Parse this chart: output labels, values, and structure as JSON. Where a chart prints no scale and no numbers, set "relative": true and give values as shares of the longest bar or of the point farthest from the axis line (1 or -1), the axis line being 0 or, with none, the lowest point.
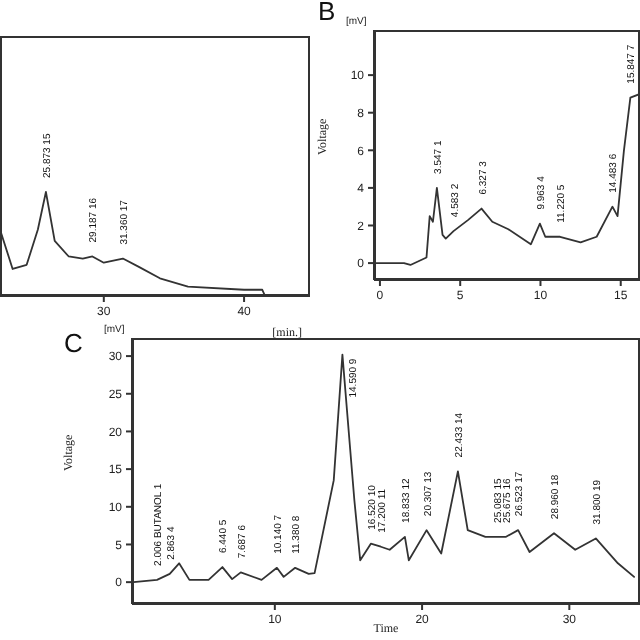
{
  "chart_data": [
    {
      "type": "line",
      "relative": true,
      "xlabel": "[min.]",
      "tick_labels": "x",
      "color": "#333333",
      "xlim": [
        22.6,
        44.7
      ],
      "xticks": [
        30,
        40
      ],
      "x": [
        22.6,
        23.5,
        24.5,
        25.3,
        25.873,
        26.5,
        27.5,
        28.5,
        29.187,
        30,
        31.36,
        32.5,
        34,
        36,
        40,
        41.3,
        41.5,
        43
      ],
      "values": [
        0.64,
        0.26,
        0.3,
        0.64,
        1,
        0.53,
        0.38,
        0.36,
        0.38,
        0.32,
        0.36,
        0.28,
        0.17,
        0.09,
        0.06,
        0.06,
        0,
        0
      ],
      "annotations": [
        {
          "text": "25.873 15",
          "x": 25.873,
          "y": 1
        },
        {
          "text": "29.187 16",
          "x": 29.187,
          "y": 0.38
        },
        {
          "text": "31.360 17",
          "x": 31.36,
          "y": 0.36
        }
      ]
    },
    {
      "type": "line",
      "title": "B",
      "ylabel": "Voltage",
      "color": "#333333",
      "xlim": [
        -0.37,
        16.2
      ],
      "xticks": [
        0,
        5,
        10,
        15
      ],
      "ylim": [
        -0.9,
        12.4
      ],
      "yticks": [
        0,
        2,
        4,
        6,
        8,
        10
      ],
      "x": [
        -0.37,
        1.5,
        1.9,
        2.9,
        3.1,
        3.3,
        3.547,
        3.9,
        4.1,
        4.583,
        5.5,
        6.327,
        7,
        8,
        9.4,
        9.963,
        10.3,
        11.22,
        12.5,
        13.5,
        14.483,
        14.8,
        15.2,
        15.6,
        16.2
      ],
      "values": [
        0,
        0,
        -0.1,
        0.3,
        2.5,
        2.2,
        4.0,
        1.5,
        1.3,
        1.7,
        2.3,
        2.9,
        2.2,
        1.8,
        1.0,
        2.1,
        1.4,
        1.4,
        1.1,
        1.4,
        3.0,
        2.5,
        6,
        8.8,
        9.0
      ],
      "annotations": [
        "[mV]",
        {
          "text": "3.547 1",
          "x": 3.547,
          "y": 4.0
        },
        {
          "text": "4.583 2",
          "x": 4.583,
          "y": 1.7
        },
        {
          "text": "6.327 3",
          "x": 6.327,
          "y": 2.9
        },
        {
          "text": "9.963 4",
          "x": 9.963,
          "y": 2.1
        },
        {
          "text": "11.220 5",
          "x": 11.22,
          "y": 1.4
        },
        {
          "text": "14.483 6",
          "x": 14.483,
          "y": 3.0
        },
        {
          "text": "15.847 7",
          "x": 15.6,
          "y": 8.8
        }
      ]
    },
    {
      "type": "line",
      "title": "C",
      "xlabel": "Time",
      "ylabel": "Voltage",
      "color": "#333333",
      "xlim": [
        0.3,
        34.8
      ],
      "xticks": [
        10,
        20,
        30
      ],
      "ylim": [
        -2.9,
        32.4
      ],
      "yticks": [
        0,
        5,
        10,
        15,
        20,
        25,
        30
      ],
      "x": [
        0.4,
        2.0,
        2.863,
        3.5,
        4.2,
        5.5,
        6.44,
        7.1,
        7.687,
        9.1,
        10.14,
        10.6,
        11.38,
        12.3,
        12.7,
        14.0,
        14.59,
        15.4,
        15.8,
        16.52,
        17.2,
        17.8,
        18.833,
        19.1,
        20.307,
        21.3,
        22.433,
        23.1,
        24.3,
        25.083,
        25.675,
        26.523,
        27.3,
        28.96,
        30.4,
        31.8,
        33.3,
        34.4
      ],
      "values": [
        0,
        0.3,
        1.1,
        2.5,
        0.3,
        0.3,
        2.0,
        0.4,
        1.3,
        0.3,
        1.9,
        0.7,
        1.9,
        1.1,
        1.2,
        13.5,
        30.2,
        10.9,
        2.9,
        5.1,
        4.7,
        4.3,
        6.0,
        2.9,
        6.9,
        3.8,
        14.7,
        6.9,
        6.0,
        6.0,
        6.0,
        6.9,
        4.0,
        6.5,
        4.3,
        5.8,
        2.5,
        0.7
      ],
      "annotations": [
        "[mV]",
        {
          "text": "2.006 BUTANOL 1",
          "x": 2.0,
          "y": 0.3
        },
        {
          "text": "2.863 4",
          "x": 2.863,
          "y": 1.1
        },
        {
          "text": "6.440 5",
          "x": 6.44,
          "y": 2.0
        },
        {
          "text": "7.687 6",
          "x": 7.687,
          "y": 1.3
        },
        {
          "text": "10.140 7",
          "x": 10.14,
          "y": 1.9
        },
        {
          "text": "11.380 8",
          "x": 11.38,
          "y": 1.9
        },
        {
          "text": "14.590 9",
          "x": 14.59,
          "y": 30.2
        },
        {
          "text": "16.520 10",
          "x": 16.52,
          "y": 5.1
        },
        {
          "text": "17.200 11",
          "x": 17.2,
          "y": 4.7
        },
        {
          "text": "18.833 12",
          "x": 18.833,
          "y": 6.0
        },
        {
          "text": "20.307 13",
          "x": 20.307,
          "y": 6.9
        },
        {
          "text": "22.433 14",
          "x": 22.433,
          "y": 14.7
        },
        {
          "text": "25.083 15",
          "x": 25.083,
          "y": 6.0
        },
        {
          "text": "25.675 16",
          "x": 25.675,
          "y": 6.0
        },
        {
          "text": "26.523 17",
          "x": 26.523,
          "y": 6.9
        },
        {
          "text": "28.960 18",
          "x": 28.96,
          "y": 6.5
        },
        {
          "text": "31.800 19",
          "x": 31.8,
          "y": 5.8
        }
      ]
    }
  ]
}
